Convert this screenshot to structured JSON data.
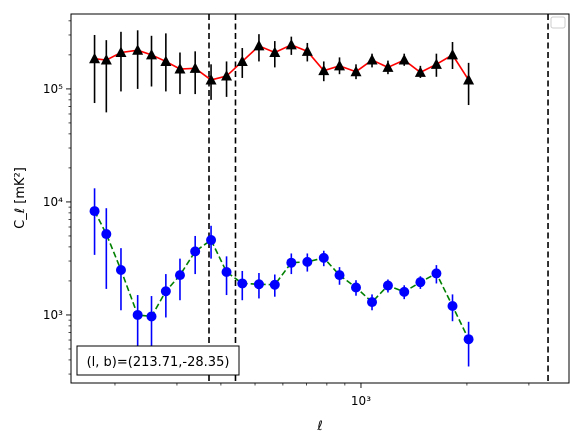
{
  "chart_data": {
    "type": "scatter",
    "title": "",
    "xlabel": "ℓ",
    "ylabel": "C_ℓ  [mK²]",
    "xscale": "log",
    "yscale": "log",
    "xlim": [
      150,
      3900
    ],
    "ylim": [
      250,
      460000
    ],
    "grid": false,
    "legend": "empty box at upper-right",
    "x_tick_labels": [
      {
        "value": 1000,
        "label": "10³"
      }
    ],
    "y_tick_labels": [
      {
        "value": 1000,
        "label": "10³"
      },
      {
        "value": 10000,
        "label": "10⁴"
      },
      {
        "value": 100000,
        "label": "10⁵"
      }
    ],
    "vlines": [
      370,
      440,
      3400
    ],
    "annotation": "(l, b)=(213.71,-28.35)",
    "series": [
      {
        "color": "#ff0000",
        "marker": "triangle",
        "marker_color": "#000000",
        "errbar_color": "#000000",
        "linestyle": "solid",
        "points": [
          {
            "x": 175,
            "y": 185000,
            "lo": 75000,
            "hi": 300000
          },
          {
            "x": 189,
            "y": 180000,
            "lo": 62000,
            "hi": 270000
          },
          {
            "x": 208,
            "y": 210000,
            "lo": 95000,
            "hi": 320000
          },
          {
            "x": 232,
            "y": 220000,
            "lo": 100000,
            "hi": 330000
          },
          {
            "x": 254,
            "y": 200000,
            "lo": 105000,
            "hi": 295000
          },
          {
            "x": 279,
            "y": 175000,
            "lo": 95000,
            "hi": 310000
          },
          {
            "x": 306,
            "y": 150000,
            "lo": 90000,
            "hi": 210000
          },
          {
            "x": 338,
            "y": 152000,
            "lo": 90000,
            "hi": 215000
          },
          {
            "x": 375,
            "y": 120000,
            "lo": 80000,
            "hi": 165000
          },
          {
            "x": 415,
            "y": 130000,
            "lo": 85000,
            "hi": 175000
          },
          {
            "x": 460,
            "y": 175000,
            "lo": 125000,
            "hi": 230000
          },
          {
            "x": 513,
            "y": 240000,
            "lo": 175000,
            "hi": 305000
          },
          {
            "x": 569,
            "y": 210000,
            "lo": 155000,
            "hi": 265000
          },
          {
            "x": 634,
            "y": 245000,
            "lo": 200000,
            "hi": 290000
          },
          {
            "x": 704,
            "y": 215000,
            "lo": 175000,
            "hi": 255000
          },
          {
            "x": 784,
            "y": 145000,
            "lo": 117000,
            "hi": 175000
          },
          {
            "x": 869,
            "y": 160000,
            "lo": 135000,
            "hi": 190000
          },
          {
            "x": 968,
            "y": 142000,
            "lo": 122000,
            "hi": 165000
          },
          {
            "x": 1075,
            "y": 180000,
            "lo": 155000,
            "hi": 205000
          },
          {
            "x": 1193,
            "y": 155000,
            "lo": 135000,
            "hi": 178000
          },
          {
            "x": 1327,
            "y": 180000,
            "lo": 160000,
            "hi": 205000
          },
          {
            "x": 1475,
            "y": 140000,
            "lo": 125000,
            "hi": 160000
          },
          {
            "x": 1638,
            "y": 165000,
            "lo": 128000,
            "hi": 205000
          },
          {
            "x": 1820,
            "y": 200000,
            "lo": 150000,
            "hi": 260000
          },
          {
            "x": 2022,
            "y": 120000,
            "lo": 72000,
            "hi": 170000
          }
        ]
      },
      {
        "color": "#008000",
        "marker": "circle",
        "marker_color": "#0000ff",
        "errbar_color": "#0000ff",
        "linestyle": "dashed",
        "points": [
          {
            "x": 175,
            "y": 8300,
            "lo": 3400,
            "hi": 13200
          },
          {
            "x": 189,
            "y": 5200,
            "lo": 1700,
            "hi": 8800
          },
          {
            "x": 208,
            "y": 2500,
            "lo": 1100,
            "hi": 3900
          },
          {
            "x": 232,
            "y": 1000,
            "lo": 500,
            "hi": 1500
          },
          {
            "x": 254,
            "y": 970,
            "lo": 430,
            "hi": 1470
          },
          {
            "x": 279,
            "y": 1620,
            "lo": 950,
            "hi": 2300
          },
          {
            "x": 306,
            "y": 2250,
            "lo": 1350,
            "hi": 3150
          },
          {
            "x": 338,
            "y": 3650,
            "lo": 2300,
            "hi": 5000
          },
          {
            "x": 375,
            "y": 4600,
            "lo": 3150,
            "hi": 6150
          },
          {
            "x": 415,
            "y": 2400,
            "lo": 1500,
            "hi": 3300
          },
          {
            "x": 460,
            "y": 1900,
            "lo": 1350,
            "hi": 2450
          },
          {
            "x": 513,
            "y": 1870,
            "lo": 1400,
            "hi": 2350
          },
          {
            "x": 569,
            "y": 1850,
            "lo": 1450,
            "hi": 2280
          },
          {
            "x": 634,
            "y": 2900,
            "lo": 2300,
            "hi": 3500
          },
          {
            "x": 704,
            "y": 2950,
            "lo": 2420,
            "hi": 3500
          },
          {
            "x": 784,
            "y": 3200,
            "lo": 2700,
            "hi": 3700
          },
          {
            "x": 869,
            "y": 2250,
            "lo": 1850,
            "hi": 2650
          },
          {
            "x": 968,
            "y": 1750,
            "lo": 1480,
            "hi": 2030
          },
          {
            "x": 1075,
            "y": 1300,
            "lo": 1100,
            "hi": 1520
          },
          {
            "x": 1193,
            "y": 1820,
            "lo": 1580,
            "hi": 2060
          },
          {
            "x": 1327,
            "y": 1600,
            "lo": 1380,
            "hi": 1830
          },
          {
            "x": 1475,
            "y": 1950,
            "lo": 1700,
            "hi": 2200
          },
          {
            "x": 1638,
            "y": 2330,
            "lo": 1900,
            "hi": 2760
          },
          {
            "x": 1820,
            "y": 1200,
            "lo": 880,
            "hi": 1520
          },
          {
            "x": 2022,
            "y": 610,
            "lo": 350,
            "hi": 870
          }
        ]
      }
    ]
  }
}
